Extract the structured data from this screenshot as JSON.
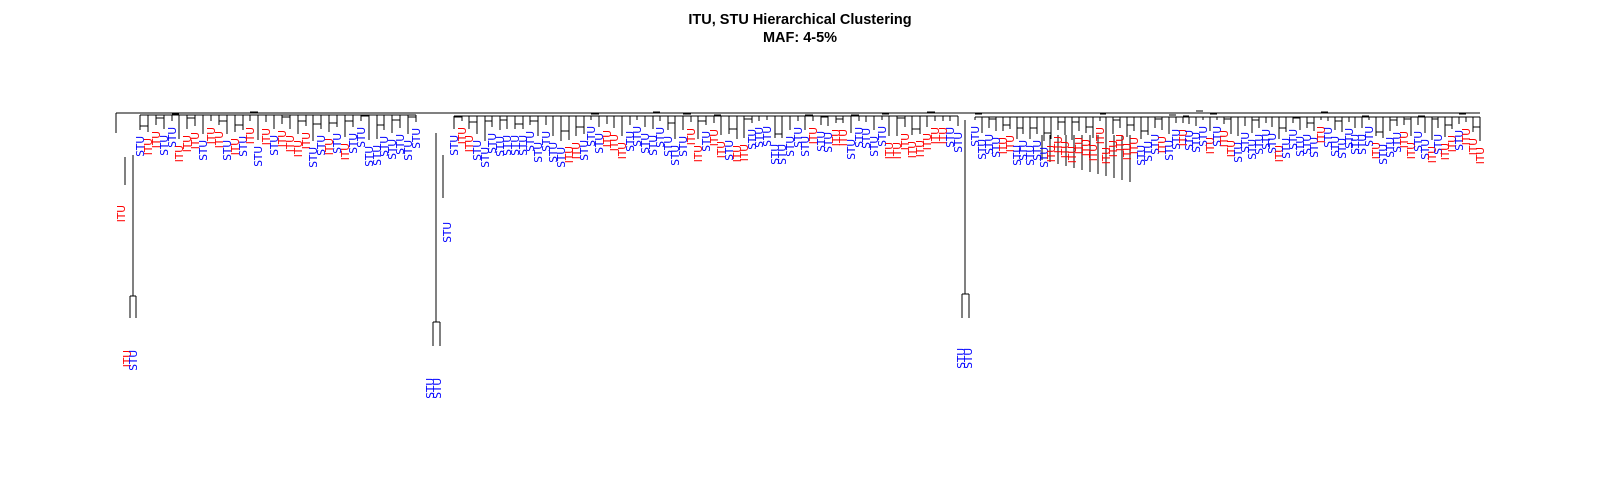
{
  "title": "ITU, STU Hierarchical Clustering",
  "subtitle": "MAF: 4-5%",
  "colors": {
    "ITU": "#ff0000",
    "STU": "#0000ff",
    "branch": "#000000"
  },
  "leaf_labels": [
    "STU",
    "ITU",
    "ITU",
    "STU",
    "STU",
    "ITU",
    "ITU",
    "ITU",
    "STU",
    "ITU",
    "ITU",
    "STU",
    "ITU",
    "STU",
    "ITU",
    "STU",
    "ITU",
    "STU",
    "ITU",
    "ITU",
    "ITU",
    "ITU",
    "STU",
    "STU",
    "ITU",
    "STU",
    "ITU",
    "STU",
    "STU",
    "STU",
    "STU",
    "STU",
    "STU",
    "STU",
    "STU",
    "STU",
    "STU",
    "ITU",
    "ITU",
    "STU",
    "STU",
    "STU",
    "STU",
    "STU",
    "STU",
    "STU",
    "STU",
    "STU",
    "STU",
    "STU",
    "STU",
    "ITU",
    "ITU",
    "STU",
    "STU",
    "STU",
    "ITU",
    "ITU",
    "ITU",
    "STU",
    "STU",
    "STU",
    "STU",
    "STU",
    "STU",
    "STU",
    "STU",
    "ITU",
    "ITU",
    "STU",
    "ITU",
    "ITU",
    "STU",
    "ITU",
    "ITU",
    "STU",
    "STU",
    "STU",
    "STU",
    "STU",
    "STU",
    "STU",
    "STU",
    "ITU",
    "STU",
    "STU",
    "ITU",
    "ITU",
    "STU",
    "STU",
    "STU",
    "STU",
    "STU",
    "ITU",
    "ITU",
    "ITU",
    "ITU",
    "ITU",
    "ITU",
    "ITU",
    "ITU",
    "STU",
    "STU",
    "STU",
    "STU",
    "STU",
    "STU",
    "ITU",
    "ITU",
    "STU",
    "STU",
    "STU",
    "STU",
    "STU",
    "ITU",
    "ITU",
    "ITU",
    "ITU",
    "ITU",
    "ITU",
    "ITU",
    "ITU",
    "ITU",
    "ITU",
    "ITU",
    "ITU",
    "ITU",
    "STU",
    "STU",
    "STU",
    "ITU",
    "STU",
    "STU",
    "ITU",
    "STU",
    "STU",
    "STU",
    "ITU",
    "STU",
    "ITU",
    "ITU",
    "STU",
    "STU",
    "STU",
    "STU",
    "STU",
    "STU",
    "ITU",
    "STU",
    "STU",
    "STU",
    "STU",
    "STU",
    "ITU",
    "STU",
    "STU",
    "STU",
    "STU",
    "STU",
    "STU",
    "STU",
    "ITU",
    "STU",
    "STU",
    "STU",
    "ITU",
    "ITU",
    "STU",
    "STU",
    "ITU",
    "STU",
    "ITU",
    "ITU",
    "STU",
    "ITU",
    "ITU",
    "ITU"
  ],
  "notes_singletons": [
    "ITU",
    "STU",
    "STU",
    "STU",
    "STU",
    "STU"
  ]
}
